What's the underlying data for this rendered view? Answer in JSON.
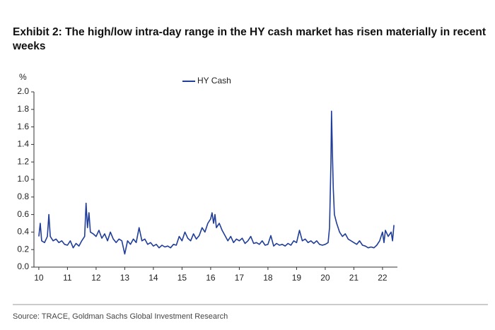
{
  "chart_data": {
    "type": "line",
    "title": [
      "Exhibit 2: The high/low intra-day range in the HY cash market has risen materially in recent",
      "weeks"
    ],
    "y_axis_label": "%",
    "source": "Source: TRACE, Goldman Sachs Global Investment Research",
    "x": [
      10.0,
      10.05,
      10.1,
      10.2,
      10.3,
      10.35,
      10.4,
      10.5,
      10.6,
      10.7,
      10.8,
      10.9,
      11.0,
      11.1,
      11.2,
      11.3,
      11.4,
      11.5,
      11.6,
      11.65,
      11.7,
      11.75,
      11.8,
      11.9,
      12.0,
      12.1,
      12.2,
      12.3,
      12.4,
      12.5,
      12.6,
      12.7,
      12.8,
      12.9,
      13.0,
      13.1,
      13.2,
      13.3,
      13.4,
      13.5,
      13.6,
      13.7,
      13.8,
      13.9,
      14.0,
      14.1,
      14.2,
      14.3,
      14.4,
      14.5,
      14.6,
      14.7,
      14.8,
      14.9,
      15.0,
      15.1,
      15.2,
      15.3,
      15.4,
      15.5,
      15.6,
      15.7,
      15.8,
      15.9,
      16.0,
      16.05,
      16.1,
      16.15,
      16.2,
      16.3,
      16.4,
      16.5,
      16.6,
      16.7,
      16.8,
      16.9,
      17.0,
      17.1,
      17.2,
      17.3,
      17.4,
      17.5,
      17.6,
      17.7,
      17.8,
      17.9,
      18.0,
      18.1,
      18.2,
      18.3,
      18.4,
      18.5,
      18.6,
      18.7,
      18.8,
      18.9,
      19.0,
      19.1,
      19.2,
      19.3,
      19.4,
      19.5,
      19.6,
      19.7,
      19.8,
      19.9,
      20.0,
      20.1,
      20.15,
      20.2,
      20.22,
      20.25,
      20.28,
      20.32,
      20.4,
      20.5,
      20.6,
      20.7,
      20.8,
      20.9,
      21.0,
      21.1,
      21.2,
      21.3,
      21.4,
      21.5,
      21.6,
      21.7,
      21.8,
      21.9,
      22.0,
      22.05,
      22.1,
      22.2,
      22.3,
      22.35,
      22.4
    ],
    "series": [
      {
        "name": "HY Cash",
        "color": "#1f3d99",
        "values": [
          0.35,
          0.5,
          0.3,
          0.28,
          0.35,
          0.6,
          0.35,
          0.3,
          0.32,
          0.28,
          0.3,
          0.26,
          0.25,
          0.3,
          0.22,
          0.27,
          0.24,
          0.3,
          0.35,
          0.73,
          0.45,
          0.62,
          0.4,
          0.38,
          0.35,
          0.42,
          0.33,
          0.38,
          0.3,
          0.4,
          0.32,
          0.28,
          0.32,
          0.3,
          0.15,
          0.3,
          0.26,
          0.32,
          0.28,
          0.45,
          0.3,
          0.32,
          0.26,
          0.28,
          0.24,
          0.26,
          0.22,
          0.25,
          0.23,
          0.24,
          0.22,
          0.26,
          0.25,
          0.35,
          0.3,
          0.4,
          0.33,
          0.3,
          0.38,
          0.32,
          0.36,
          0.45,
          0.4,
          0.5,
          0.55,
          0.62,
          0.5,
          0.6,
          0.45,
          0.5,
          0.42,
          0.36,
          0.3,
          0.35,
          0.28,
          0.32,
          0.3,
          0.33,
          0.27,
          0.3,
          0.35,
          0.27,
          0.28,
          0.26,
          0.3,
          0.25,
          0.26,
          0.36,
          0.24,
          0.27,
          0.25,
          0.26,
          0.24,
          0.27,
          0.25,
          0.3,
          0.28,
          0.42,
          0.3,
          0.32,
          0.28,
          0.3,
          0.27,
          0.3,
          0.26,
          0.25,
          0.26,
          0.28,
          0.45,
          1.2,
          1.78,
          1.3,
          0.9,
          0.6,
          0.5,
          0.4,
          0.35,
          0.38,
          0.32,
          0.3,
          0.28,
          0.26,
          0.3,
          0.25,
          0.24,
          0.22,
          0.23,
          0.22,
          0.25,
          0.3,
          0.4,
          0.28,
          0.42,
          0.35,
          0.4,
          0.3,
          0.48
        ]
      }
    ],
    "xlim": [
      9.83,
      22.52
    ],
    "xticks": [
      10,
      11,
      12,
      13,
      14,
      15,
      16,
      17,
      18,
      19,
      20,
      21,
      22
    ],
    "ylim": [
      0,
      2
    ],
    "yticks": [
      {
        "value": 0,
        "label": "0.0"
      },
      0.2,
      0.4,
      0.6,
      0.8,
      {
        "value": 1,
        "label": "1.0"
      },
      1.2,
      1.4,
      1.6,
      1.8,
      {
        "value": 2,
        "label": "2.0"
      }
    ],
    "legend": "top"
  }
}
